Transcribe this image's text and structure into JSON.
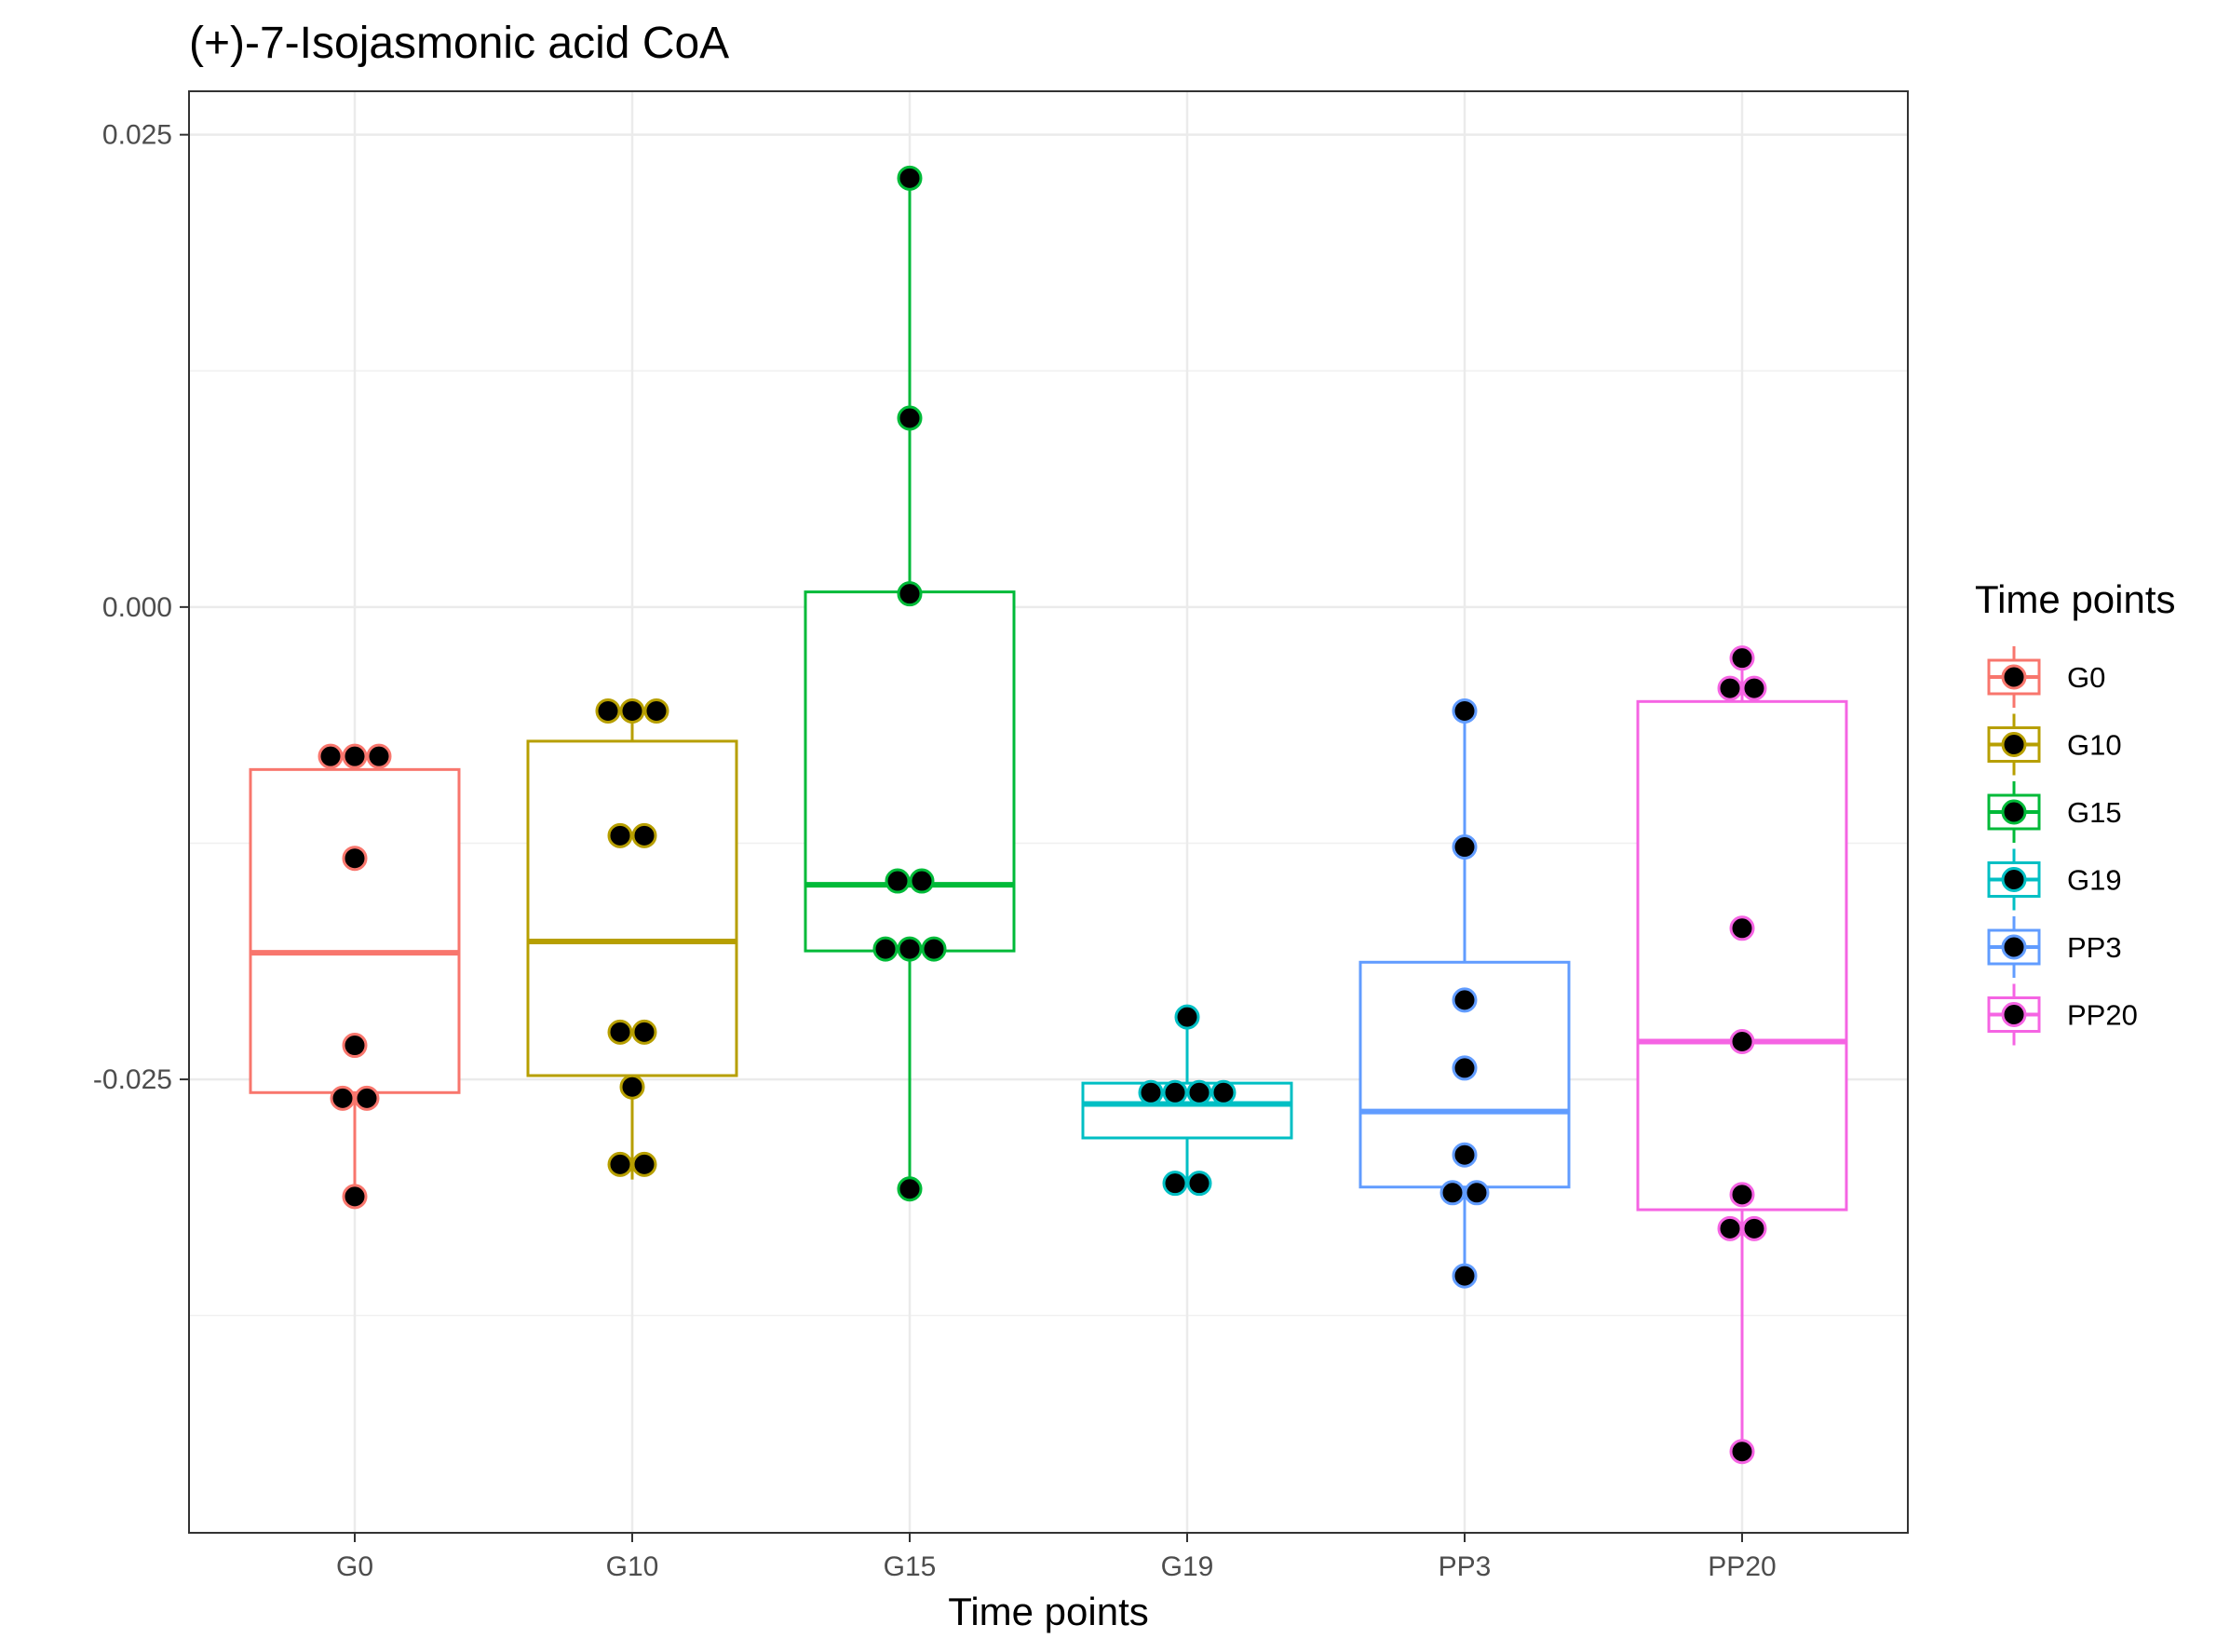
{
  "chart_data": {
    "type": "box",
    "title": "(+)-7-Isojasmonic acid CoA",
    "xlabel": "Time points",
    "ylabel": "",
    "ylim": [
      -0.049,
      0.0273
    ],
    "y_ticks": [
      0.025,
      0.0,
      -0.025
    ],
    "y_tick_labels": [
      "0.025",
      "0.000",
      "-0.025"
    ],
    "grid": true,
    "legend": {
      "title": "Time points",
      "position": "right"
    },
    "categories": [
      "G0",
      "G10",
      "G15",
      "G19",
      "PP3",
      "PP20"
    ],
    "colors": [
      "#F8766D",
      "#B79F00",
      "#00BA38",
      "#00BFC4",
      "#619CFF",
      "#F564E3"
    ],
    "series": [
      {
        "name": "G0",
        "box": {
          "whisker_low": -0.0312,
          "q1": -0.0257,
          "median": -0.0183,
          "q3": -0.0086,
          "whisker_high": -0.0078
        },
        "points": [
          -0.0079,
          -0.0079,
          -0.0079,
          -0.0133,
          -0.0232,
          -0.026,
          -0.026,
          -0.0312
        ]
      },
      {
        "name": "G10",
        "box": {
          "whisker_low": -0.0303,
          "q1": -0.0248,
          "median": -0.0177,
          "q3": -0.0071,
          "whisker_high": -0.0055
        },
        "points": [
          -0.0055,
          -0.0055,
          -0.0055,
          -0.0121,
          -0.0121,
          -0.0225,
          -0.0225,
          -0.0254,
          -0.0295,
          -0.0295
        ]
      },
      {
        "name": "G15",
        "box": {
          "whisker_low": -0.0308,
          "q1": -0.0182,
          "median": -0.0147,
          "q3": 0.0008,
          "whisker_high": 0.0227
        },
        "points": [
          0.0227,
          0.01,
          0.0007,
          -0.0145,
          -0.0145,
          -0.0181,
          -0.0181,
          -0.0181,
          -0.0308
        ]
      },
      {
        "name": "G19",
        "box": {
          "whisker_low": -0.0305,
          "q1": -0.0281,
          "median": -0.0263,
          "q3": -0.0252,
          "whisker_high": -0.0217
        },
        "points": [
          -0.0217,
          -0.0257,
          -0.0257,
          -0.0257,
          -0.0257,
          -0.0305,
          -0.0305
        ]
      },
      {
        "name": "PP3",
        "box": {
          "whisker_low": -0.0354,
          "q1": -0.0307,
          "median": -0.0267,
          "q3": -0.0188,
          "whisker_high": -0.0055
        },
        "points": [
          -0.0055,
          -0.0127,
          -0.0208,
          -0.0244,
          -0.029,
          -0.031,
          -0.031,
          -0.0354
        ]
      },
      {
        "name": "PP20",
        "box": {
          "whisker_low": -0.0447,
          "q1": -0.0319,
          "median": -0.023,
          "q3": -0.005,
          "whisker_high": -0.0027
        },
        "points": [
          -0.0027,
          -0.0043,
          -0.0043,
          -0.017,
          -0.023,
          -0.0311,
          -0.0329,
          -0.0329,
          -0.0447
        ]
      }
    ]
  }
}
